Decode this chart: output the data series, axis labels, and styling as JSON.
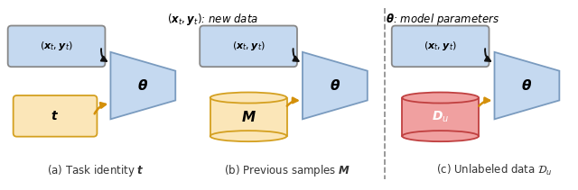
{
  "fig_width": 6.4,
  "fig_height": 2.11,
  "dpi": 100,
  "bg_color": "#ffffff",
  "title_left": "$(\\boldsymbol{x}_t, \\boldsymbol{y}_t)$: new data",
  "title_right": "$\\boldsymbol{\\theta}$: model parameters",
  "box_blue_face": "#c5d9f0",
  "box_blue_edge": "#7a9bbf",
  "box_orange_face": "#fbe6b8",
  "box_orange_edge": "#d4a020",
  "box_red_face": "#f0a0a0",
  "box_red_edge": "#c04040",
  "data_box_edge": "#888888",
  "arrow_black": "#111111",
  "arrow_orange": "#d4900a",
  "dashed_line_color": "#888888",
  "captions": [
    "(a) Task identity $\\boldsymbol{t}$",
    "(b) Previous samples $\\boldsymbol{M}$",
    "(c) Unlabeled data $\\mathcal{D}_u$"
  ]
}
